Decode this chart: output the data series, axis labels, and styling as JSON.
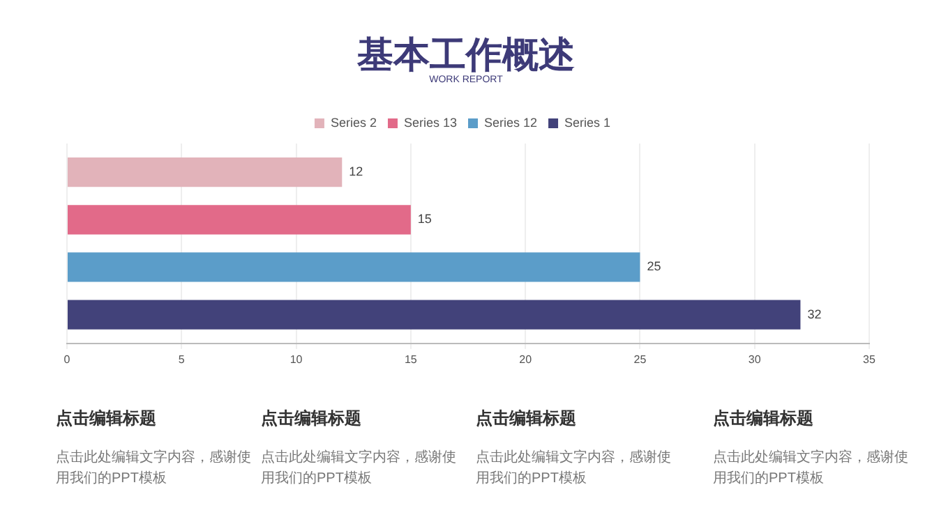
{
  "chart_data": {
    "type": "bar",
    "title": "基本工作概述",
    "subtitle": "WORK REPORT",
    "orientation": "horizontal",
    "categories": [
      null
    ],
    "series": [
      {
        "name": "Series 2",
        "color": "#e2b3ba",
        "values": [
          12
        ]
      },
      {
        "name": "Series 13",
        "color": "#e26a89",
        "values": [
          15
        ]
      },
      {
        "name": "Series 12",
        "color": "#5b9dc9",
        "values": [
          25
        ]
      },
      {
        "name": "Series 1",
        "color": "#42427a",
        "values": [
          32
        ]
      }
    ],
    "xlim": [
      0,
      35
    ],
    "xticks": [
      0,
      5,
      10,
      15,
      20,
      25,
      30,
      35
    ],
    "grid": "x",
    "legend": "top",
    "data_labels": true,
    "tick_labels": "x",
    "annotations": [
      "点击编辑标题",
      "点击此处编辑文字内容，感谢使用我们的PPT模板",
      "点击编辑标题",
      "点击此处编辑文字内容，感谢使用我们的PPT模板",
      "点击编辑标题",
      "点击此处编辑文字内容，感谢使用我们的PPT模板",
      "点击编辑标题",
      "点击此处编辑文字内容，感谢使用我们的PPT模板"
    ]
  }
}
